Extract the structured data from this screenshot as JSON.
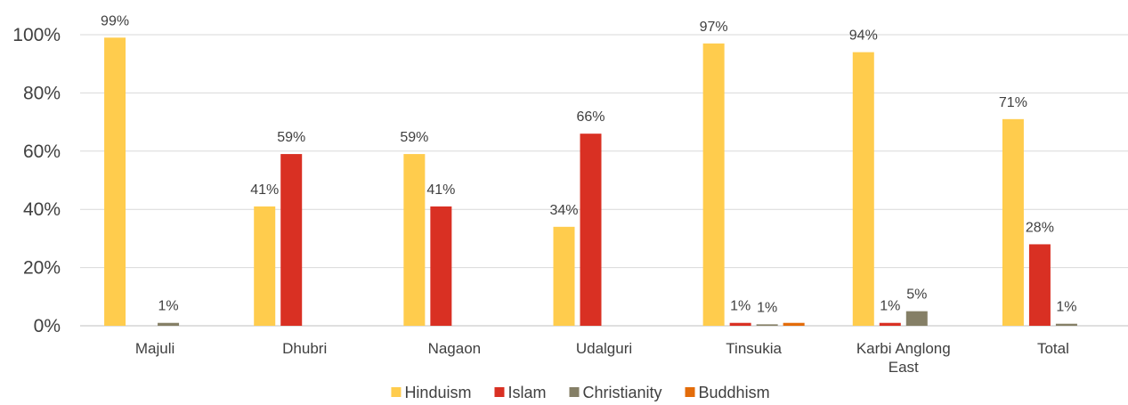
{
  "chart_data": {
    "type": "bar",
    "categories": [
      [
        "Majuli"
      ],
      [
        "Dhubri"
      ],
      [
        "Nagaon"
      ],
      [
        "Udalguri"
      ],
      [
        "Tinsukia"
      ],
      [
        "Karbi Anglong",
        "East"
      ],
      [
        "Total"
      ]
    ],
    "series": [
      {
        "name": "Hinduism",
        "color": "#FFCC4D",
        "values": [
          99,
          41,
          59,
          34,
          97,
          94,
          71
        ],
        "labels": [
          "99%",
          "41%",
          "59%",
          "34%",
          "97%",
          "94%",
          "71%"
        ]
      },
      {
        "name": "Islam",
        "color": "#D93023",
        "values": [
          0,
          59,
          41,
          66,
          1,
          1,
          28
        ],
        "labels": [
          "",
          "59%",
          "41%",
          "66%",
          "1%",
          "1%",
          "28%"
        ]
      },
      {
        "name": "Christianity",
        "color": "#857F66",
        "values": [
          1,
          0,
          0,
          0,
          0.5,
          5,
          0.7
        ],
        "labels": [
          "1%",
          "",
          "",
          "",
          "1%",
          "5%",
          "1%"
        ]
      },
      {
        "name": "Buddhism",
        "color": "#E36C0A",
        "values": [
          0,
          0,
          0,
          0,
          1,
          0,
          0
        ],
        "labels": [
          "",
          "",
          "",
          "",
          "",
          "",
          ""
        ]
      }
    ],
    "yticks": [
      "0%",
      "20%",
      "40%",
      "60%",
      "80%",
      "100%"
    ],
    "ylim": [
      0,
      100
    ],
    "grid": true,
    "legend": "bottom"
  }
}
